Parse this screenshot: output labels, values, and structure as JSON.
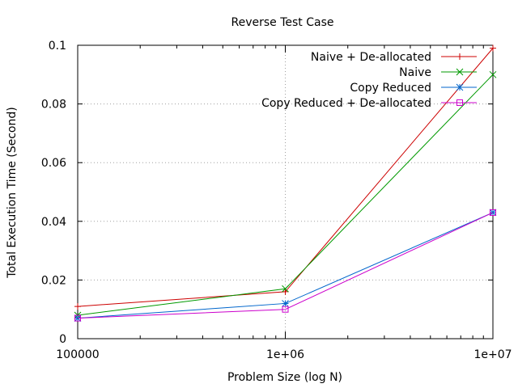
{
  "chart_data": {
    "type": "line",
    "title": "Reverse Test Case",
    "xlabel": "Problem Size (log N)",
    "ylabel": "Total Execution Time (Second)",
    "xscale": "log",
    "xlim": [
      100000,
      10000000
    ],
    "ylim": [
      0,
      0.1
    ],
    "x": [
      100000,
      1000000,
      10000000
    ],
    "xticks": [
      {
        "value": 100000,
        "label": "100000"
      },
      {
        "value": 1000000,
        "label": "1e+06"
      },
      {
        "value": 10000000,
        "label": "1e+07"
      }
    ],
    "yticks": [
      {
        "value": 0,
        "label": "0"
      },
      {
        "value": 0.02,
        "label": "0.02"
      },
      {
        "value": 0.04,
        "label": "0.04"
      },
      {
        "value": 0.06,
        "label": "0.06"
      },
      {
        "value": 0.08,
        "label": "0.08"
      },
      {
        "value": 0.1,
        "label": "0.1"
      }
    ],
    "grid": true,
    "legend_position": "top-right",
    "series": [
      {
        "name": "Naive + De-allocated",
        "color": "#cc0000",
        "marker": "plus",
        "values": [
          0.011,
          0.016,
          0.099
        ]
      },
      {
        "name": "Naive",
        "color": "#009900",
        "marker": "cross",
        "values": [
          0.008,
          0.017,
          0.09
        ]
      },
      {
        "name": "Copy Reduced",
        "color": "#0066cc",
        "marker": "star",
        "values": [
          0.007,
          0.012,
          0.043
        ]
      },
      {
        "name": "Copy Reduced + De-allocated",
        "color": "#cc00cc",
        "marker": "square",
        "values": [
          0.007,
          0.01,
          0.043
        ]
      }
    ]
  }
}
